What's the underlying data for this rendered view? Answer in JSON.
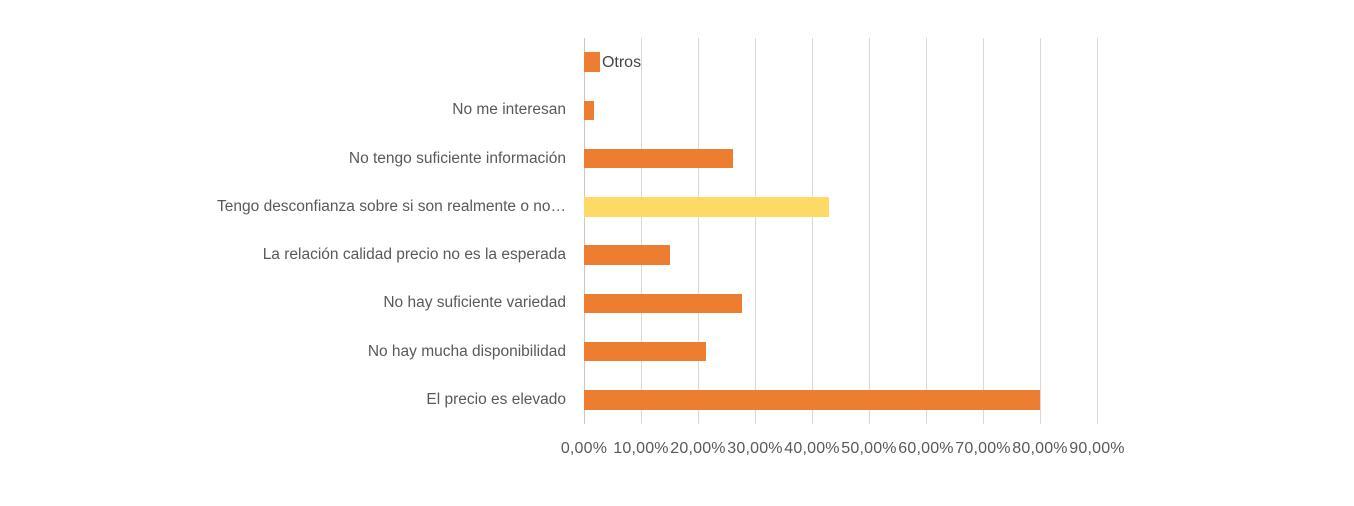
{
  "chart_data": {
    "type": "bar",
    "orientation": "horizontal",
    "title": "",
    "xlabel": "",
    "ylabel": "",
    "categories": [
      "Otros",
      "No me interesan",
      "No tengo suficiente información",
      "Tengo desconfianza sobre si son realmente o no…",
      "La relación calidad precio no es la esperada",
      "No hay suficiente variedad",
      "No hay mucha disponibilidad",
      "El precio es elevado"
    ],
    "values": [
      2.8,
      1.8,
      26.1,
      43.0,
      15.0,
      27.8,
      21.4,
      80.0
    ],
    "value_unit": "percent",
    "highlight_index": 3,
    "inline_label_index": 0,
    "x_tick_labels": [
      "0,00%",
      "10,00%",
      "20,00%",
      "30,00%",
      "40,00%",
      "50,00%",
      "60,00%",
      "70,00%",
      "80,00%",
      "90,00%"
    ],
    "x_range": [
      0,
      90
    ],
    "grid": true,
    "legend": "none",
    "colors": {
      "bar_default": "#ED7D31",
      "bar_highlight": "#FFD966",
      "gridline": "#D9D9D9",
      "axis_line": "#C9C9C9",
      "label_text": "#595959"
    }
  }
}
